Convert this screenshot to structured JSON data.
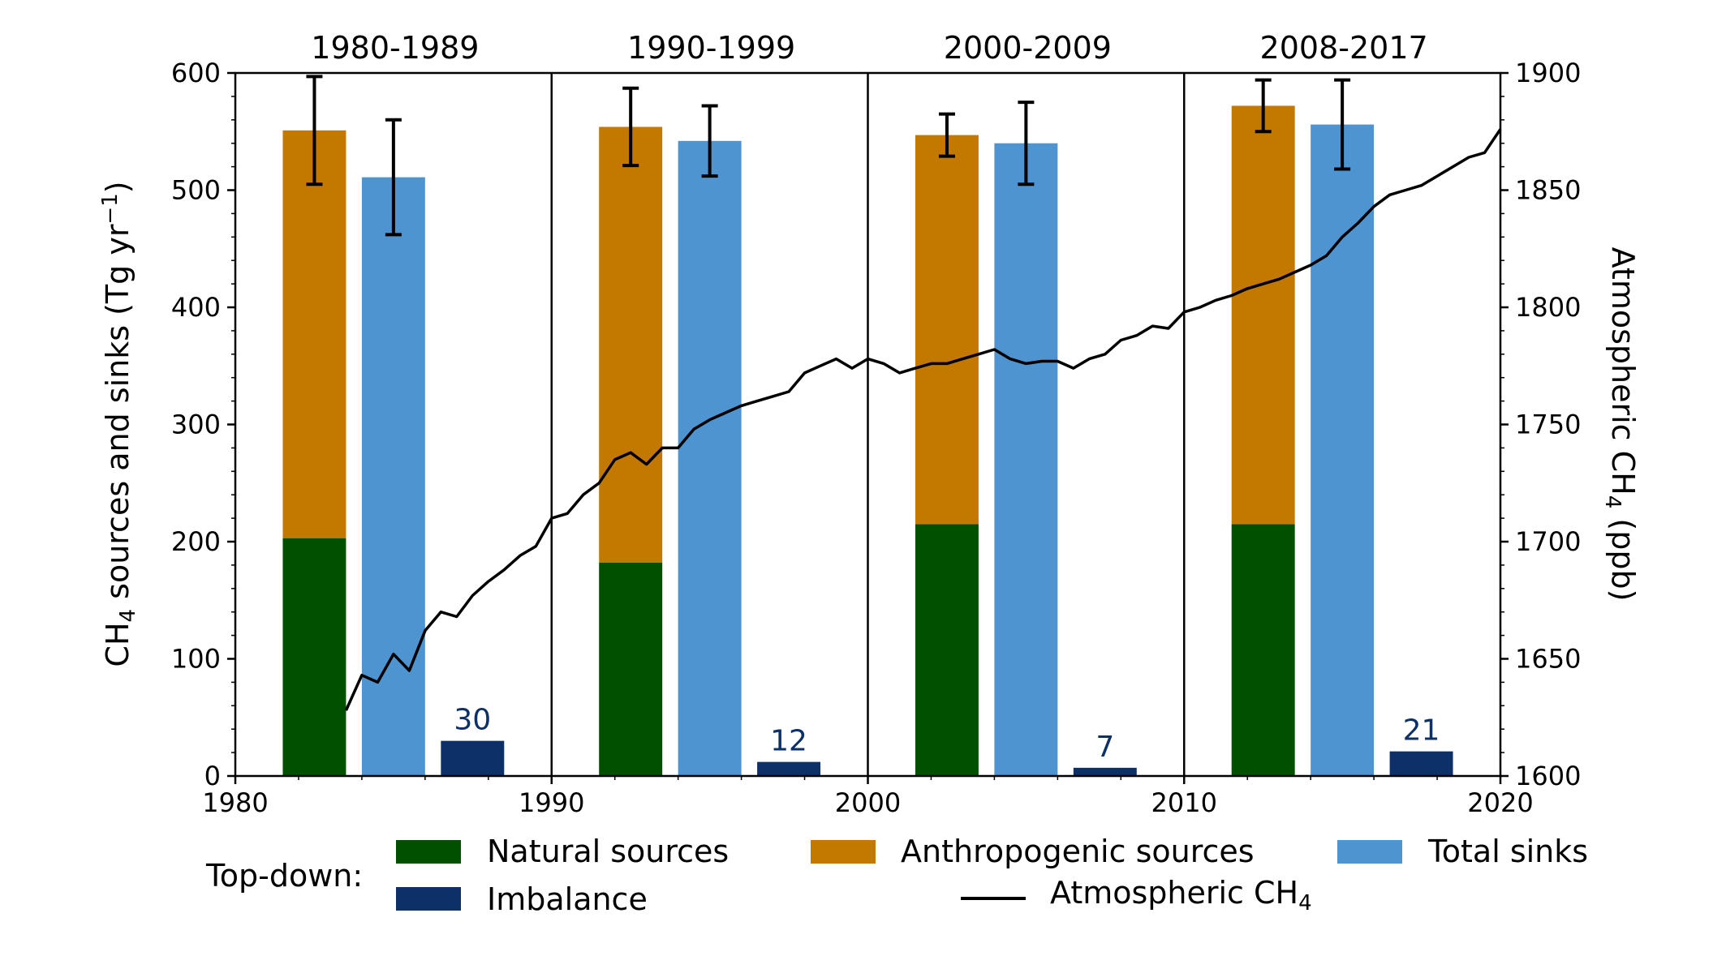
{
  "chart_data": {
    "type": "bar",
    "x_axis": {
      "range": [
        1980,
        2020
      ],
      "ticks": [
        1980,
        1990,
        2000,
        2010,
        2020
      ],
      "label": ""
    },
    "y_axis_left": {
      "label_main": "CH",
      "label_sub": "4",
      "label_rest": " sources and sinks (Tg yr",
      "label_sup": "−1",
      "label_end": ")",
      "range": [
        0,
        600
      ],
      "ticks": [
        0,
        100,
        200,
        300,
        400,
        500,
        600
      ]
    },
    "y_axis_right": {
      "label_main": "Atmospheric CH",
      "label_sub": "4",
      "label_end": " (ppb)",
      "range": [
        1600,
        1900
      ],
      "ticks": [
        1600,
        1650,
        1700,
        1750,
        1800,
        1850,
        1900
      ]
    },
    "period_dividers": [
      1990,
      2000,
      2010
    ],
    "periods": [
      {
        "label": "1980-1989",
        "center": 1985,
        "natural": 203,
        "anthropogenic": 348,
        "sources_err": 46,
        "sinks": 511,
        "sinks_err": 49,
        "imbalance": 30,
        "imbalance_label": "30"
      },
      {
        "label": "1990-1999",
        "center": 1995,
        "natural": 182,
        "anthropogenic": 372,
        "sources_err": 33,
        "sinks": 542,
        "sinks_err": 30,
        "imbalance": 12,
        "imbalance_label": "12"
      },
      {
        "label": "2000-2009",
        "center": 2005,
        "natural": 215,
        "anthropogenic": 332,
        "sources_err": 18,
        "sinks": 540,
        "sinks_err": 35,
        "imbalance": 7,
        "imbalance_label": "7"
      },
      {
        "label": "2008-2017",
        "center": 2015,
        "natural": 215,
        "anthropogenic": 357,
        "sources_err": 22,
        "sinks": 556,
        "sinks_err": 38,
        "imbalance": 21,
        "imbalance_label": "21"
      }
    ],
    "atmospheric_ch4": {
      "years": [
        1983.5,
        1984.0,
        1984.5,
        1985.0,
        1985.5,
        1986.0,
        1986.5,
        1987.0,
        1987.5,
        1988.0,
        1988.5,
        1989.0,
        1989.5,
        1990.0,
        1990.5,
        1991.0,
        1991.5,
        1992.0,
        1992.5,
        1993.0,
        1993.5,
        1994.0,
        1994.5,
        1995.0,
        1995.5,
        1996.0,
        1996.5,
        1997.0,
        1997.5,
        1998.0,
        1998.5,
        1999.0,
        1999.5,
        2000.0,
        2000.5,
        2001.0,
        2001.5,
        2002.0,
        2002.5,
        2003.0,
        2003.5,
        2004.0,
        2004.5,
        2005.0,
        2005.5,
        2006.0,
        2006.5,
        2007.0,
        2007.5,
        2008.0,
        2008.5,
        2009.0,
        2009.5,
        2010.0,
        2010.5,
        2011.0,
        2011.5,
        2012.0,
        2012.5,
        2013.0,
        2013.5,
        2014.0,
        2014.5,
        2015.0,
        2015.5,
        2016.0,
        2016.5,
        2017.0,
        2017.5,
        2018.0,
        2018.5,
        2019.0,
        2019.5,
        2020.0
      ],
      "ppb": [
        1628,
        1643,
        1640,
        1652,
        1645,
        1662,
        1670,
        1668,
        1677,
        1683,
        1688,
        1694,
        1698,
        1710,
        1712,
        1720,
        1725,
        1735,
        1738,
        1733,
        1740,
        1740,
        1748,
        1752,
        1755,
        1758,
        1760,
        1762,
        1764,
        1772,
        1775,
        1778,
        1774,
        1778,
        1776,
        1772,
        1774,
        1776,
        1776,
        1778,
        1780,
        1782,
        1778,
        1776,
        1777,
        1777,
        1774,
        1778,
        1780,
        1786,
        1788,
        1792,
        1791,
        1798,
        1800,
        1803,
        1805,
        1808,
        1810,
        1812,
        1815,
        1818,
        1822,
        1830,
        1836,
        1843,
        1848,
        1850,
        1852,
        1856,
        1860,
        1864,
        1866,
        1876
      ],
      "color": "#000000"
    },
    "colors": {
      "natural": "#005000",
      "anthropogenic": "#c37800",
      "sinks": "#4d94d0",
      "imbalance": "#0d3068",
      "imbalance_label": "#0d3068"
    },
    "legend": {
      "title": "Top-down:",
      "natural": "Natural sources",
      "anthropogenic": "Anthropogenic sources",
      "sinks": "Total sinks",
      "imbalance": "Imbalance",
      "line_main": "Atmospheric CH",
      "line_sub": "4",
      "placement": "bottom"
    }
  }
}
